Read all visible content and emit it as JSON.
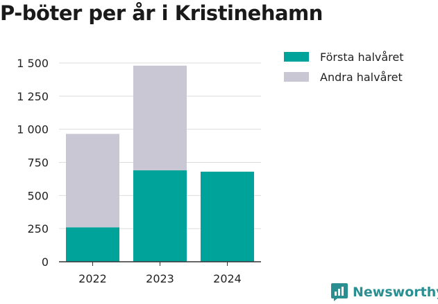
{
  "title": "P-böter per år i Kristinehamn",
  "colors": {
    "first_half": "#00a39a",
    "second_half": "#c8c7d3",
    "grid": "#dddddd",
    "brand": "#2a8f90"
  },
  "chart_data": {
    "type": "bar",
    "stacked": true,
    "categories": [
      "2022",
      "2023",
      "2024"
    ],
    "series": [
      {
        "name": "Första halvåret",
        "values": [
          260,
          690,
          680
        ]
      },
      {
        "name": "Andra halvåret",
        "values": [
          705,
          790,
          0
        ]
      }
    ],
    "ylim": [
      0,
      1500
    ],
    "yticks": [
      0,
      250,
      500,
      750,
      1000,
      1250,
      1500
    ],
    "ytick_labels": [
      "0",
      "250",
      "500",
      "750",
      "1 000",
      "1 250",
      "1 500"
    ],
    "grid": true,
    "legend": "top-right"
  },
  "legend": {
    "items": [
      "Första halvåret",
      "Andra halvåret"
    ]
  },
  "brand": {
    "label": "Newsworthy",
    "icon": "newsworthy-logo-icon"
  }
}
